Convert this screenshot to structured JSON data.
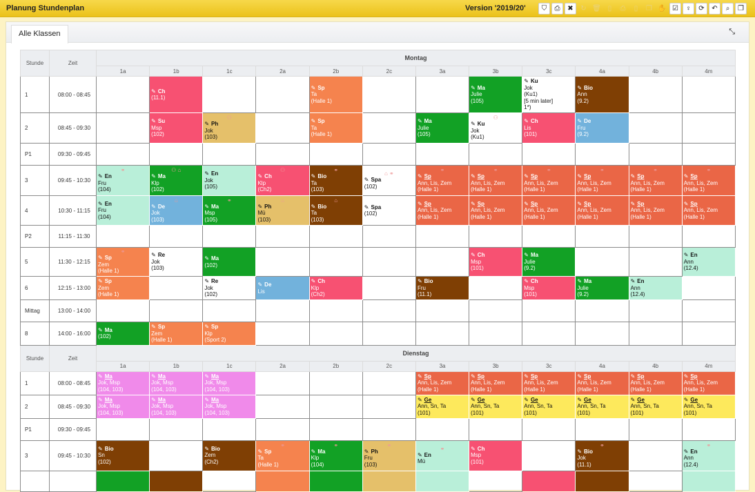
{
  "header": {
    "title": "Planung Stundenplan",
    "version": "Version '2019/20'",
    "tools": [
      {
        "icon": "tag-icon",
        "g": "⛉",
        "on": true
      },
      {
        "icon": "print-icon",
        "g": "⎙",
        "on": true
      },
      {
        "icon": "delete-icon",
        "g": "✖",
        "on": true
      },
      {
        "icon": "refresh-icon",
        "g": "↻",
        "on": false
      },
      {
        "icon": "trash-icon",
        "g": "🗑",
        "on": false
      },
      {
        "icon": "document-icon",
        "g": "▯",
        "on": false
      },
      {
        "icon": "print-doc-icon",
        "g": "⎙",
        "on": false
      },
      {
        "icon": "document-2-icon",
        "g": "▯",
        "on": false
      },
      {
        "icon": "copy-icon",
        "g": "❐",
        "on": false
      },
      {
        "icon": "hand-icon",
        "g": "✋",
        "on": false
      },
      {
        "icon": "calendar-check-icon",
        "g": "☑",
        "on": true
      },
      {
        "icon": "bulb-icon",
        "g": "♀",
        "on": true
      },
      {
        "icon": "sync-icon",
        "g": "⟳",
        "on": true
      },
      {
        "icon": "undo-icon",
        "g": "↶",
        "on": true
      },
      {
        "icon": "search-doc-icon",
        "g": "⌕",
        "on": true
      },
      {
        "icon": "copy-2-icon",
        "g": "❐",
        "on": true
      }
    ]
  },
  "tab": {
    "label": "Alle Klassen"
  },
  "colors": {
    "ch": "#f75172",
    "sp": "#f5834e",
    "ma": "#12a125",
    "bio": "#7f3f04",
    "de": "#72b2dc",
    "en": "#b9efd9",
    "ph": "#e5c06a",
    "spg": "#ea6646",
    "ge": "#fde95c",
    "mag": "#f08aea",
    "white": "#ffffff"
  },
  "light": [
    "en",
    "ph",
    "ge",
    "white"
  ],
  "labels": {
    "stunde": "Stunde",
    "zeit": "Zeit"
  },
  "classes": [
    "1a",
    "1b",
    "1c",
    "2a",
    "2b",
    "2c",
    "3a",
    "3b",
    "3c",
    "4a",
    "4b",
    "4m"
  ],
  "days": [
    {
      "name": "Montag",
      "rows": [
        {
          "stunde": "1",
          "zeit": "08:00 - 08:45",
          "h": 53,
          "cells": [
            null,
            {
              "s": "Ch",
              "r": "(11.1)",
              "c": "ch"
            },
            null,
            null,
            {
              "s": "Sp",
              "t": "Ta",
              "r": "(Halle 1)",
              "c": "sp"
            },
            null,
            null,
            {
              "s": "Ma",
              "t": "Julie",
              "r": "(105)",
              "c": "ma"
            },
            {
              "s": "Ku",
              "t": "Jok",
              "r": "(Ku1)",
              "n": "[5 min later]",
              "n2": "1*)",
              "c": "white"
            },
            {
              "s": "Bio",
              "t": "Ann",
              "r": "(9.2)",
              "c": "bio"
            },
            null,
            null
          ]
        },
        {
          "stunde": "2",
          "zeit": "08:45 - 09:30",
          "h": 44,
          "cells": [
            null,
            {
              "s": "Su",
              "t": "Msp",
              "r": "(102)",
              "c": "ch"
            },
            {
              "s": "Ph",
              "t": "Jok",
              "r": "(103)",
              "c": "ph",
              "i": "group"
            },
            null,
            {
              "s": "Sp",
              "t": "Ta",
              "r": "(Halle 1)",
              "c": "sp"
            },
            null,
            {
              "s": "Ma",
              "t": "Julie",
              "r": "(105)",
              "c": "ma"
            },
            {
              "s": "Ku",
              "t": "Jok",
              "r": "(Ku1)",
              "c": "white",
              "i": "group"
            },
            {
              "s": "Ch",
              "t": "Lis",
              "r": "(101)",
              "c": "ch"
            },
            {
              "s": "De",
              "t": "Fru",
              "r": "(9.2)",
              "c": "de"
            },
            null,
            null
          ]
        },
        {
          "stunde": "P1",
          "zeit": "09:30 - 09:45",
          "h": 32,
          "cells": []
        },
        {
          "stunde": "3",
          "zeit": "09:45 - 10:30",
          "h": 44,
          "cells": [
            {
              "s": "En",
              "t": "Fru",
              "r": "(104)",
              "c": "en",
              "i": "link"
            },
            {
              "s": "Ma",
              "t": "Klp",
              "r": "(102)",
              "c": "ma",
              "i": "group home"
            },
            {
              "s": "En",
              "t": "Jok",
              "r": "(105)",
              "c": "en"
            },
            {
              "s": "Ch",
              "t": "Klp",
              "r": "(Ch2)",
              "c": "ch",
              "i": "group"
            },
            {
              "s": "Bio",
              "t": "Ta",
              "r": "(103)",
              "c": "bio",
              "i": "link"
            },
            {
              "s": "Spa",
              "r": "(102)",
              "c": "white",
              "i": "home link"
            },
            {
              "s": "Sp",
              "u": true,
              "t": "Ann, Lis, Zem",
              "r": "(Halle 1)",
              "c": "spg",
              "i": "link"
            },
            {
              "s": "Sp",
              "u": true,
              "t": "Ann, Lis, Zem",
              "r": "(Halle 1)",
              "c": "spg",
              "i": "link"
            },
            {
              "s": "Sp",
              "u": true,
              "t": "Ann, Lis, Zem",
              "r": "(Halle 1)",
              "c": "spg",
              "i": "link"
            },
            {
              "s": "Sp",
              "u": true,
              "t": "Ann, Lis, Zem",
              "r": "(Halle 1)",
              "c": "spg",
              "i": "link"
            },
            {
              "s": "Sp",
              "u": true,
              "t": "Ann, Lis, Zem",
              "r": "(Halle 1)",
              "c": "spg",
              "i": "link"
            },
            {
              "s": "Sp",
              "u": true,
              "t": "Ann, Lis, Zem",
              "r": "(Halle 1)",
              "c": "spg",
              "i": "link"
            }
          ]
        },
        {
          "stunde": "4",
          "zeit": "10:30 - 11:15",
          "h": 43,
          "cells": [
            {
              "s": "En",
              "t": "Fru",
              "r": "(104)",
              "c": "en"
            },
            {
              "s": "De",
              "t": "Jok",
              "r": "(103)",
              "c": "de",
              "i": "home"
            },
            {
              "s": "Ma",
              "t": "Msp",
              "r": "(105)",
              "c": "ma",
              "i": "link"
            },
            {
              "s": "Ph",
              "t": "Mü",
              "r": "(103)",
              "c": "ph",
              "i": "home"
            },
            {
              "s": "Bio",
              "t": "Ta",
              "r": "(103)",
              "c": "bio",
              "i": "home"
            },
            {
              "s": "Spa",
              "r": "(102)",
              "c": "white"
            },
            {
              "s": "Sp",
              "u": true,
              "t": "Ann, Lis, Zem",
              "r": "(Halle 1)",
              "c": "spg"
            },
            {
              "s": "Sp",
              "u": true,
              "t": "Ann, Lis, Zem",
              "r": "(Halle 1)",
              "c": "spg"
            },
            {
              "s": "Sp",
              "u": true,
              "t": "Ann, Lis, Zem",
              "r": "(Halle 1)",
              "c": "spg"
            },
            {
              "s": "Sp",
              "u": true,
              "t": "Ann, Lis, Zem",
              "r": "(Halle 1)",
              "c": "spg"
            },
            {
              "s": "Sp",
              "u": true,
              "t": "Ann, Lis, Zem",
              "r": "(Halle 1)",
              "c": "spg"
            },
            {
              "s": "Sp",
              "u": true,
              "t": "Ann, Lis, Zem",
              "r": "(Halle 1)",
              "c": "spg"
            }
          ]
        },
        {
          "stunde": "P2",
          "zeit": "11:15 - 11:30",
          "h": 32,
          "cells": []
        },
        {
          "stunde": "5",
          "zeit": "11:30 - 12:15",
          "h": 42,
          "cells": [
            {
              "s": "Sp",
              "t": "Zem",
              "r": "(Halle 1)",
              "c": "sp",
              "i": "link"
            },
            {
              "s": "Re",
              "t": "Jok",
              "r": "(103)",
              "c": "white"
            },
            {
              "s": "Ma",
              "r": "(102)",
              "c": "ma"
            },
            null,
            null,
            null,
            null,
            {
              "s": "Ch",
              "t": "Msp",
              "r": "(101)",
              "c": "ch"
            },
            {
              "s": "Ma",
              "t": "Julie",
              "r": "(9.2)",
              "c": "ma"
            },
            null,
            null,
            {
              "s": "En",
              "t": "Ann",
              "r": "(12.4)",
              "c": "en"
            }
          ]
        },
        {
          "stunde": "6",
          "zeit": "12:15 - 13:00",
          "h": 34,
          "cells": [
            {
              "s": "Sp",
              "t": "Zem",
              "r": "(Halle 1)",
              "c": "sp"
            },
            null,
            {
              "s": "Re",
              "t": "Jok",
              "r": "(102)",
              "c": "white"
            },
            {
              "s": "De",
              "t": "Lis",
              "c": "de"
            },
            {
              "s": "Ch",
              "t": "Klp",
              "r": "(Ch2)",
              "c": "ch"
            },
            null,
            {
              "s": "Bio",
              "t": "Fru",
              "r": "(11.1)",
              "c": "bio"
            },
            null,
            {
              "s": "Ch",
              "t": "Msp",
              "r": "(101)",
              "c": "ch"
            },
            {
              "s": "Ma",
              "t": "Julie",
              "r": "(9.2)",
              "c": "ma"
            },
            {
              "s": "En",
              "t": "Ann",
              "r": "(12.4)",
              "c": "en"
            },
            null
          ]
        },
        {
          "stunde": "Mittag",
          "zeit": "13:00 - 14:00",
          "h": 32,
          "cells": []
        },
        {
          "stunde": "8",
          "zeit": "14:00 - 16:00",
          "h": 33,
          "cells": [
            {
              "s": "Ma",
              "r": "(102)",
              "c": "ma"
            },
            {
              "s": "Sp",
              "t": "Zem",
              "r": "(Halle 1)",
              "c": "sp"
            },
            {
              "s": "Sp",
              "t": "Klp",
              "r": "(Sport 2)",
              "c": "sp"
            }
          ]
        }
      ]
    },
    {
      "name": "Dienstag",
      "rows": [
        {
          "stunde": "1",
          "zeit": "08:00 - 08:45",
          "h": 34,
          "cells": [
            {
              "s": "Ma",
              "u": true,
              "t": "Jok, Msp",
              "r": "(104, 103)",
              "c": "mag"
            },
            {
              "s": "Ma",
              "u": true,
              "t": "Jok, Msp",
              "r": "(104, 103)",
              "c": "mag"
            },
            {
              "s": "Ma",
              "u": true,
              "t": "Jok, Msp",
              "r": "(104, 103)",
              "c": "mag"
            },
            null,
            null,
            null,
            {
              "s": "Sp",
              "u": true,
              "t": "Ann, Lis, Zem",
              "r": "(Halle 1)",
              "c": "spg"
            },
            {
              "s": "Sp",
              "u": true,
              "t": "Ann, Lis, Zem",
              "r": "(Halle 1)",
              "c": "spg"
            },
            {
              "s": "Sp",
              "u": true,
              "t": "Ann, Lis, Zem",
              "r": "(Halle 1)",
              "c": "spg"
            },
            {
              "s": "Sp",
              "u": true,
              "t": "Ann, Lis, Zem",
              "r": "(Halle 1)",
              "c": "spg"
            },
            {
              "s": "Sp",
              "u": true,
              "t": "Ann, Lis, Zem",
              "r": "(Halle 1)",
              "c": "spg"
            },
            {
              "s": "Sp",
              "u": true,
              "t": "Ann, Lis, Zem",
              "r": "(Halle 1)",
              "c": "spg"
            }
          ]
        },
        {
          "stunde": "2",
          "zeit": "08:45 - 09:30",
          "h": 34,
          "cells": [
            {
              "s": "Ma",
              "u": true,
              "t": "Jok, Msp",
              "r": "(104, 103)",
              "c": "mag"
            },
            {
              "s": "Ma",
              "u": true,
              "t": "Jok, Msp",
              "r": "(104, 103)",
              "c": "mag"
            },
            {
              "s": "Ma",
              "u": true,
              "t": "Jok, Msp",
              "r": "(104, 103)",
              "c": "mag"
            },
            null,
            null,
            null,
            {
              "s": "Ge",
              "u": true,
              "t": "Ann, Sn, Ta",
              "r": "(101)",
              "c": "ge"
            },
            {
              "s": "Ge",
              "u": true,
              "t": "Ann, Sn, Ta",
              "r": "(101)",
              "c": "ge"
            },
            {
              "s": "Ge",
              "u": true,
              "t": "Ann, Sn, Ta",
              "r": "(101)",
              "c": "ge"
            },
            {
              "s": "Ge",
              "u": true,
              "t": "Ann, Sn, Ta",
              "r": "(101)",
              "c": "ge"
            },
            {
              "s": "Ge",
              "u": true,
              "t": "Ann, Sn, Ta",
              "r": "(101)",
              "c": "ge"
            },
            {
              "s": "Ge",
              "u": true,
              "t": "Ann, Sn, Ta",
              "r": "(101)",
              "c": "ge"
            }
          ]
        },
        {
          "stunde": "P1",
          "zeit": "09:30 - 09:45",
          "h": 32,
          "cells": []
        },
        {
          "stunde": "3",
          "zeit": "09:45 - 10:30",
          "h": 44,
          "cells": [
            {
              "s": "Bio",
              "t": "Sn",
              "r": "(102)",
              "c": "bio"
            },
            null,
            {
              "s": "Bio",
              "t": "Zem",
              "r": "(Ch2)",
              "c": "bio"
            },
            {
              "s": "Sp",
              "t": "Ta",
              "r": "(Halle 1)",
              "c": "sp",
              "i": "link"
            },
            {
              "s": "Ma",
              "t": "Klp",
              "r": "(104)",
              "c": "ma",
              "i": "link"
            },
            {
              "s": "Ph",
              "t": "Fru",
              "r": "(103)",
              "c": "ph",
              "i": "link"
            },
            {
              "s": "En",
              "t": "Mü",
              "c": "en",
              "i": "link"
            },
            {
              "s": "Ch",
              "t": "Msp",
              "r": "(101)",
              "c": "ch"
            },
            null,
            {
              "s": "Bio",
              "t": "Jok",
              "r": "(11.1)",
              "c": "bio",
              "i": "link"
            },
            null,
            {
              "s": "En",
              "t": "Ann",
              "r": "(12.4)",
              "c": "en",
              "i": "link"
            }
          ]
        },
        {
          "h": 30,
          "cells": [
            {
              "c": "ma"
            },
            {
              "c": "bio"
            },
            null,
            {
              "c": "sp"
            },
            {
              "c": "ma"
            },
            {
              "c": "ph"
            },
            {
              "c": "en"
            },
            null,
            {
              "c": "ch"
            },
            {
              "c": "bio"
            },
            null,
            {
              "c": "en"
            }
          ]
        }
      ]
    }
  ]
}
